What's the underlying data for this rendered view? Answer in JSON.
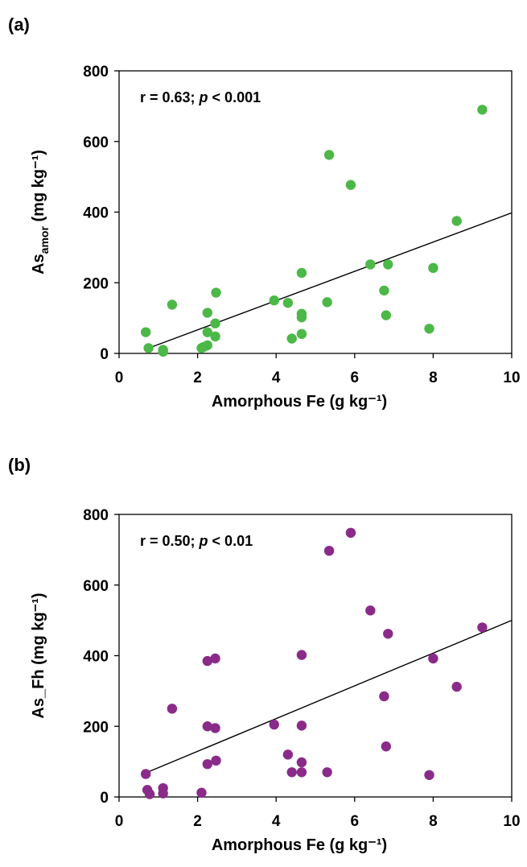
{
  "chart_data": [
    {
      "type": "scatter",
      "panel_label": "(a)",
      "annotation": {
        "r_text": "r = 0.63; ",
        "p_symbol": "p",
        "p_text": " < 0.001"
      },
      "xlabel": "Amorphous Fe (g kg⁻¹)",
      "ylabel": {
        "base": "As",
        "subscript": "amor",
        "rest": " (mg kg⁻¹)"
      },
      "xlim": [
        0,
        10
      ],
      "ylim": [
        0,
        800
      ],
      "xticks": [
        0,
        2,
        4,
        6,
        8,
        10
      ],
      "yticks": [
        0,
        200,
        400,
        600,
        800
      ],
      "marker_color": "#4cb848",
      "series": [
        {
          "x": [
            0.68,
            0.75,
            1.12,
            1.12,
            1.35,
            2.1,
            2.15,
            2.25,
            2.25,
            2.25,
            2.45,
            2.45,
            2.47,
            3.95,
            4.3,
            4.4,
            4.65,
            4.65,
            4.65,
            4.65,
            5.3,
            5.35,
            5.9,
            6.4,
            6.75,
            6.8,
            6.85,
            7.9,
            8.0,
            8.6,
            9.25
          ],
          "y": [
            60,
            15,
            10,
            5,
            138,
            15,
            18,
            115,
            60,
            23,
            85,
            48,
            172,
            150,
            143,
            42,
            112,
            102,
            55,
            228,
            145,
            562,
            477,
            252,
            178,
            108,
            252,
            70,
            242,
            375,
            690
          ]
        }
      ],
      "trendline": {
        "x": [
          0.68,
          10
        ],
        "y": [
          12,
          398
        ]
      }
    },
    {
      "type": "scatter",
      "panel_label": "(b)",
      "annotation": {
        "r_text": "r = 0.50; ",
        "p_symbol": "p",
        "p_text": " < 0.01"
      },
      "xlabel": "Amorphous Fe (g kg⁻¹)",
      "ylabel": {
        "base": "As_Fh (mg kg⁻¹)",
        "subscript": "",
        "rest": ""
      },
      "xlim": [
        0,
        10
      ],
      "ylim": [
        0,
        800
      ],
      "xticks": [
        0,
        2,
        4,
        6,
        8,
        10
      ],
      "yticks": [
        0,
        200,
        400,
        600,
        800
      ],
      "marker_color": "#8a2b8a",
      "series": [
        {
          "x": [
            0.68,
            0.72,
            0.78,
            1.12,
            1.12,
            1.35,
            2.1,
            2.25,
            2.25,
            2.25,
            2.45,
            2.45,
            2.47,
            3.95,
            4.3,
            4.4,
            4.65,
            4.65,
            4.65,
            4.65,
            5.3,
            5.35,
            5.9,
            6.4,
            6.75,
            6.8,
            6.85,
            7.9,
            8.0,
            8.6,
            9.25
          ],
          "y": [
            65,
            20,
            8,
            25,
            10,
            250,
            12,
            385,
            200,
            93,
            392,
            195,
            103,
            205,
            120,
            70,
            402,
            202,
            98,
            70,
            70,
            697,
            748,
            528,
            285,
            143,
            462,
            62,
            392,
            312,
            480
          ]
        }
      ],
      "trendline": {
        "x": [
          0.68,
          10
        ],
        "y": [
          68,
          500
        ]
      }
    }
  ]
}
